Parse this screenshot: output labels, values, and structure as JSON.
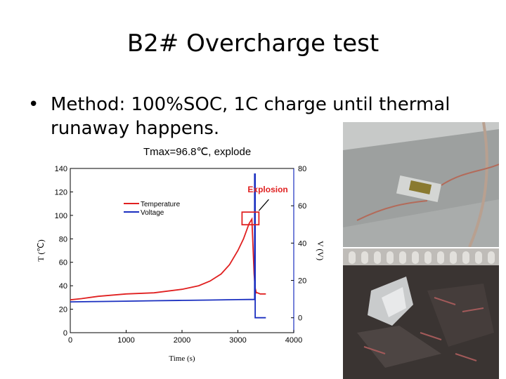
{
  "slide": {
    "title": "B2# Overcharge test",
    "bullet_symbol": "•",
    "bullet": "Method: 100%SOC, 1C charge until thermal runaway happens.",
    "caption": "Tmax=96.8℃, explode"
  },
  "chart_data": {
    "type": "line",
    "xlabel": "Time (s)",
    "ylabel_left": "T (℃)",
    "ylabel_right": "V (V)",
    "xlim": [
      0,
      4000
    ],
    "ylim_left": [
      0,
      140
    ],
    "ylim_right": [
      -8,
      80
    ],
    "x_ticks": [
      0,
      1000,
      2000,
      3000,
      4000
    ],
    "y_left_ticks": [
      0,
      20,
      40,
      60,
      80,
      100,
      120,
      140
    ],
    "y_right_ticks": [
      0,
      20,
      40,
      60,
      80
    ],
    "legend": {
      "placement": "top-left"
    },
    "annotation": {
      "text": "Explosion",
      "x": 3200,
      "y": 96.8,
      "color": "#e02020"
    },
    "series": [
      {
        "name": "Temperature",
        "axis": "left",
        "color": "#e02020",
        "x": [
          0,
          200,
          500,
          1000,
          1500,
          2000,
          2300,
          2500,
          2700,
          2850,
          3000,
          3100,
          3200,
          3250,
          3290,
          3310,
          3330,
          3350,
          3400,
          3500
        ],
        "y": [
          28,
          29,
          31,
          33,
          34,
          37,
          40,
          44,
          50,
          58,
          70,
          80,
          93,
          96.8,
          50,
          38,
          34,
          34,
          33,
          33
        ]
      },
      {
        "name": "Voltage",
        "axis": "right",
        "color": "#1a2fc0",
        "x": [
          0,
          500,
          1000,
          1500,
          2000,
          2500,
          3000,
          3200,
          3300,
          3300,
          3310,
          3310,
          3500
        ],
        "y": [
          8.5,
          8.7,
          8.9,
          9.1,
          9.3,
          9.5,
          9.7,
          9.8,
          9.8,
          77,
          77,
          0,
          0
        ]
      }
    ]
  }
}
